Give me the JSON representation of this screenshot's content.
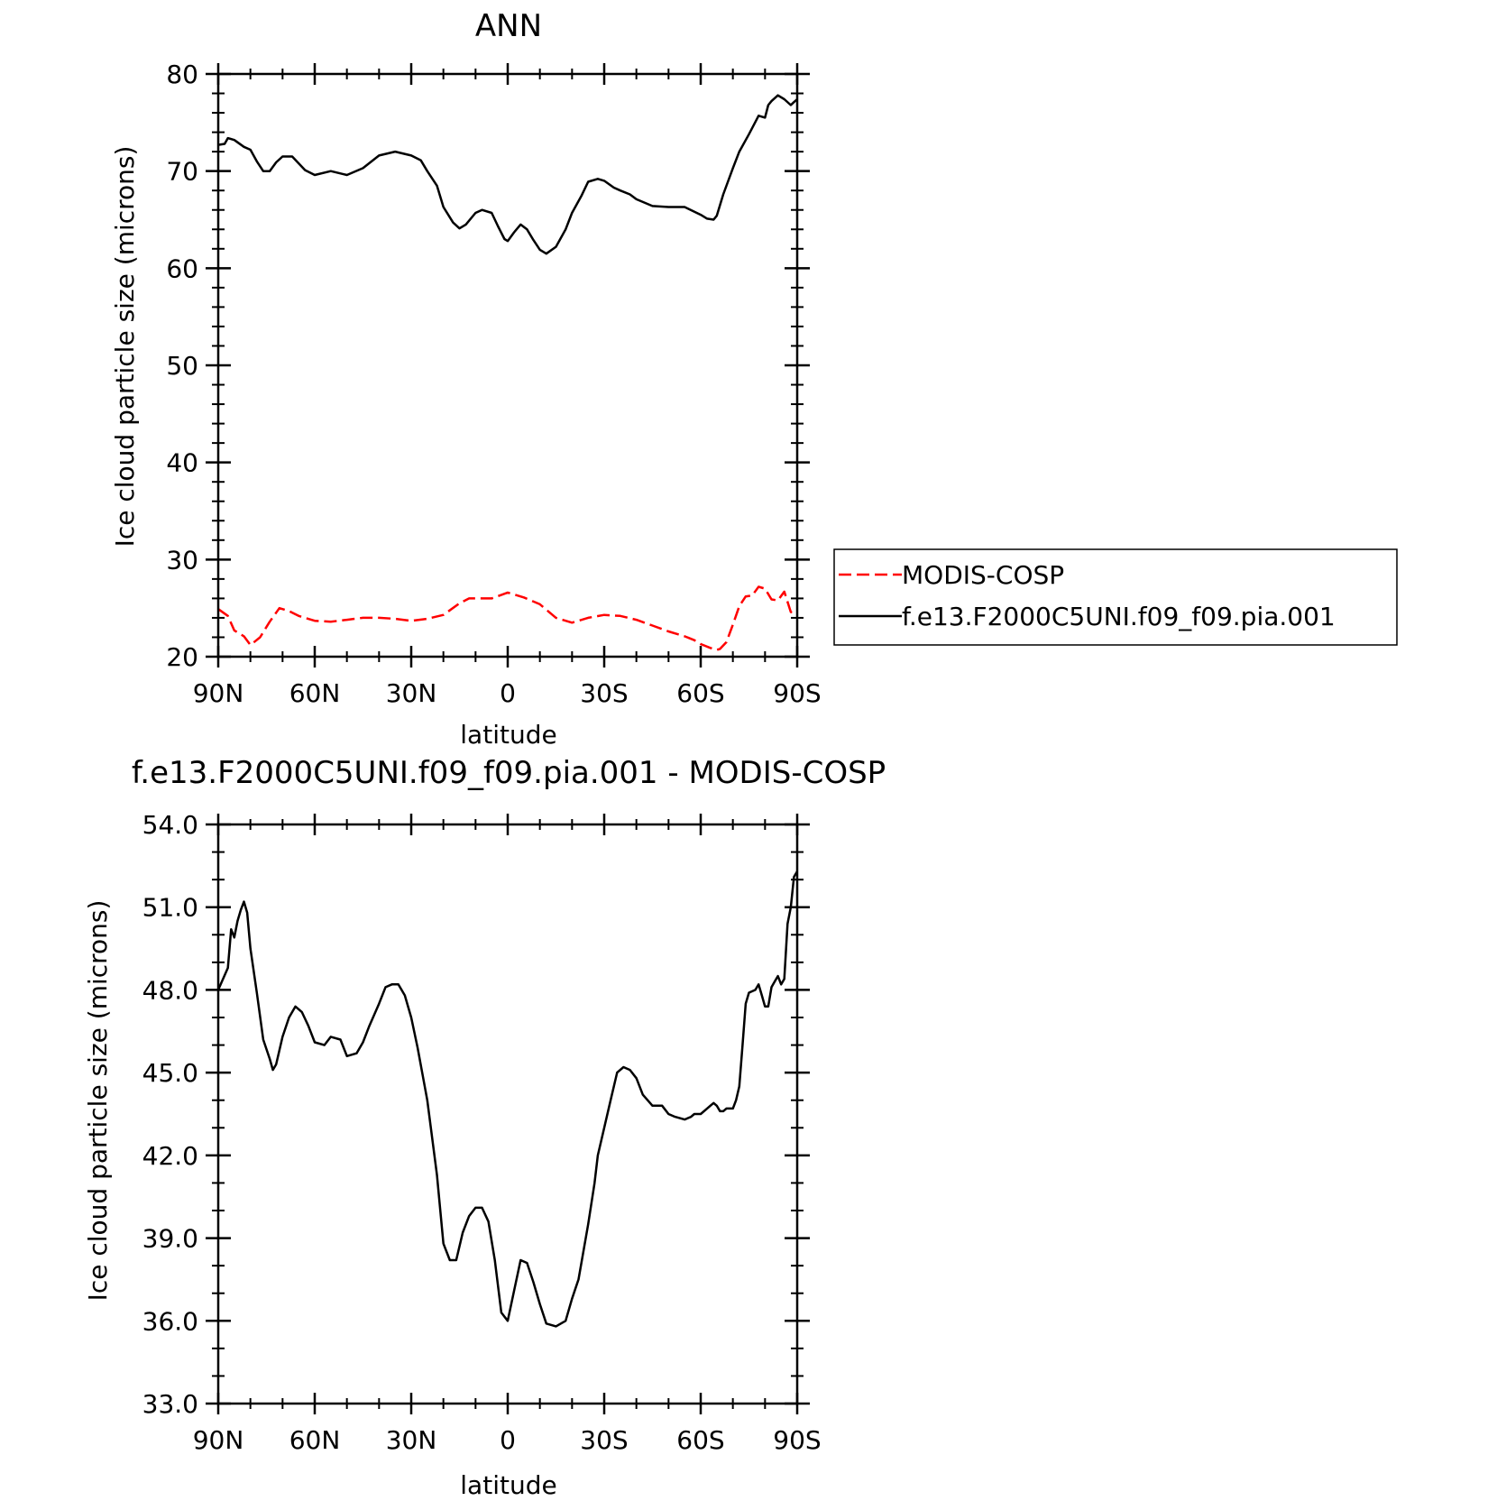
{
  "chart_data": [
    {
      "type": "line",
      "title": "ANN",
      "xlabel": "latitude",
      "ylabel": "Ice cloud particle size (microns)",
      "xlim": [
        90,
        -90
      ],
      "ylim": [
        20,
        80
      ],
      "x_ticks": [
        {
          "value": 90,
          "label": "90N"
        },
        {
          "value": 60,
          "label": "60N"
        },
        {
          "value": 30,
          "label": "30N"
        },
        {
          "value": 0,
          "label": "0"
        },
        {
          "value": -30,
          "label": "30S"
        },
        {
          "value": -60,
          "label": "60S"
        },
        {
          "value": -90,
          "label": "90S"
        }
      ],
      "y_ticks": [
        {
          "value": 80,
          "label": "80"
        },
        {
          "value": 70,
          "label": "70"
        },
        {
          "value": 60,
          "label": "60"
        },
        {
          "value": 50,
          "label": "50"
        },
        {
          "value": 40,
          "label": "40"
        },
        {
          "value": 30,
          "label": "30"
        },
        {
          "value": 20,
          "label": "20"
        }
      ],
      "legend": {
        "placement": "right-outside"
      },
      "series": [
        {
          "name": "MODIS-COSP",
          "color": "#ff0000",
          "dash": "dashed",
          "x": [
            90,
            87,
            85,
            82,
            80,
            77,
            74,
            71,
            68,
            65,
            60,
            55,
            50,
            45,
            40,
            35,
            30,
            25,
            20,
            15,
            12,
            10,
            5,
            0,
            -5,
            -10,
            -15,
            -20,
            -25,
            -30,
            -35,
            -40,
            -45,
            -50,
            -55,
            -58,
            -60,
            -63,
            -65,
            -66,
            -68,
            -70,
            -72,
            -74,
            -76,
            -78,
            -80,
            -82,
            -84,
            -86,
            -88,
            -90
          ],
          "values": [
            24.9,
            24.2,
            22.7,
            22.1,
            21.2,
            22.0,
            23.6,
            25.0,
            24.7,
            24.2,
            23.7,
            23.6,
            23.8,
            24.0,
            24.0,
            23.9,
            23.7,
            23.9,
            24.3,
            25.5,
            26.0,
            26.0,
            26.0,
            26.6,
            26.1,
            25.4,
            24.0,
            23.5,
            24.0,
            24.3,
            24.2,
            23.8,
            23.2,
            22.6,
            22.1,
            21.7,
            21.3,
            20.9,
            20.7,
            20.8,
            21.5,
            23.3,
            25.2,
            26.2,
            26.3,
            27.2,
            27.0,
            25.9,
            25.8,
            26.7,
            24.6,
            24.5
          ]
        },
        {
          "name": "f.e13.F2000C5UNI.f09_f09.pia.001",
          "color": "#000000",
          "dash": "solid",
          "x": [
            90,
            88,
            87,
            85,
            82,
            80,
            78,
            76,
            74,
            72,
            70,
            67,
            65,
            63,
            60,
            55,
            50,
            45,
            40,
            35,
            30,
            27,
            25,
            22,
            20,
            17,
            15,
            13,
            10,
            8,
            5,
            3,
            1,
            0,
            -2,
            -4,
            -6,
            -8,
            -10,
            -12,
            -15,
            -18,
            -20,
            -23,
            -25,
            -28,
            -30,
            -33,
            -35,
            -38,
            -40,
            -45,
            -50,
            -55,
            -60,
            -62,
            -64,
            -65,
            -67,
            -70,
            -72,
            -75,
            -78,
            -80,
            -81,
            -82,
            -84,
            -86,
            -88,
            -89,
            -90
          ],
          "values": [
            72.7,
            72.8,
            73.4,
            73.2,
            72.5,
            72.2,
            71.0,
            70.0,
            70.0,
            70.9,
            71.5,
            71.5,
            70.8,
            70.1,
            69.6,
            70.0,
            69.6,
            70.3,
            71.6,
            72.0,
            71.6,
            71.1,
            70.0,
            68.5,
            66.3,
            64.7,
            64.1,
            64.5,
            65.7,
            66.0,
            65.7,
            64.3,
            63.0,
            62.8,
            63.7,
            64.5,
            64.0,
            62.9,
            61.9,
            61.5,
            62.2,
            64.0,
            65.7,
            67.5,
            68.9,
            69.2,
            69.0,
            68.3,
            68.0,
            67.6,
            67.1,
            66.4,
            66.3,
            66.3,
            65.5,
            65.1,
            65.0,
            65.4,
            67.6,
            70.3,
            72.0,
            73.8,
            75.7,
            75.5,
            76.8,
            77.2,
            77.8,
            77.4,
            76.8,
            77.1,
            77.4
          ]
        }
      ]
    },
    {
      "type": "line",
      "title": "f.e13.F2000C5UNI.f09_f09.pia.001 - MODIS-COSP",
      "xlabel": "latitude",
      "ylabel": "Ice cloud particle size (microns)",
      "xlim": [
        90,
        -90
      ],
      "ylim": [
        33.0,
        54.0
      ],
      "x_ticks": [
        {
          "value": 90,
          "label": "90N"
        },
        {
          "value": 60,
          "label": "60N"
        },
        {
          "value": 30,
          "label": "30N"
        },
        {
          "value": 0,
          "label": "0"
        },
        {
          "value": -30,
          "label": "30S"
        },
        {
          "value": -60,
          "label": "60S"
        },
        {
          "value": -90,
          "label": "90S"
        }
      ],
      "y_ticks": [
        {
          "value": 54.0,
          "label": "54.0"
        },
        {
          "value": 51.0,
          "label": "51.0"
        },
        {
          "value": 48.0,
          "label": "48.0"
        },
        {
          "value": 45.0,
          "label": "45.0"
        },
        {
          "value": 42.0,
          "label": "42.0"
        },
        {
          "value": 39.0,
          "label": "39.0"
        },
        {
          "value": 36.0,
          "label": "36.0"
        },
        {
          "value": 33.0,
          "label": "33.0"
        }
      ],
      "series": [
        {
          "color": "#000000",
          "dash": "solid",
          "x": [
            90,
            87,
            86,
            85,
            84,
            83,
            82,
            81,
            80,
            78,
            76,
            74,
            73,
            72,
            70,
            68,
            66,
            64,
            62,
            60,
            57,
            55,
            52,
            50,
            47,
            45,
            43,
            40,
            38,
            36,
            34,
            32,
            30,
            28,
            25,
            22,
            20,
            18,
            16,
            14,
            12,
            10,
            8,
            6,
            4,
            2,
            0,
            -2,
            -4,
            -6,
            -8,
            -10,
            -12,
            -15,
            -18,
            -20,
            -22,
            -25,
            -27,
            -28,
            -30,
            -32,
            -34,
            -36,
            -38,
            -40,
            -42,
            -45,
            -48,
            -50,
            -52,
            -55,
            -57,
            -58,
            -60,
            -62,
            -63,
            -64,
            -65,
            -66,
            -67,
            -68,
            -70,
            -71,
            -72,
            -73,
            -74,
            -75,
            -77,
            -78,
            -79,
            -80,
            -81,
            -82,
            -83,
            -84,
            -85,
            -86,
            -87,
            -88,
            -89,
            -90
          ],
          "values": [
            48.0,
            48.8,
            50.2,
            49.9,
            50.5,
            50.9,
            51.2,
            50.8,
            49.5,
            47.9,
            46.2,
            45.5,
            45.1,
            45.3,
            46.3,
            47.0,
            47.4,
            47.2,
            46.7,
            46.1,
            46.0,
            46.3,
            46.2,
            45.6,
            45.7,
            46.1,
            46.7,
            47.5,
            48.1,
            48.2,
            48.2,
            47.8,
            47.0,
            45.9,
            44.0,
            41.3,
            38.8,
            38.2,
            38.2,
            39.2,
            39.8,
            40.1,
            40.1,
            39.6,
            38.2,
            36.3,
            36.0,
            37.1,
            38.2,
            38.1,
            37.4,
            36.6,
            35.9,
            35.8,
            36.0,
            36.8,
            37.5,
            39.5,
            41.0,
            42.0,
            43.0,
            44.0,
            45.0,
            45.2,
            45.1,
            44.8,
            44.2,
            43.8,
            43.8,
            43.5,
            43.4,
            43.3,
            43.4,
            43.5,
            43.5,
            43.7,
            43.8,
            43.9,
            43.8,
            43.6,
            43.6,
            43.7,
            43.7,
            44.0,
            44.5,
            46.0,
            47.5,
            47.9,
            48.0,
            48.2,
            47.8,
            47.4,
            47.4,
            48.1,
            48.3,
            48.5,
            48.2,
            48.4,
            50.4,
            51.0,
            52.1,
            52.3
          ]
        }
      ]
    }
  ]
}
